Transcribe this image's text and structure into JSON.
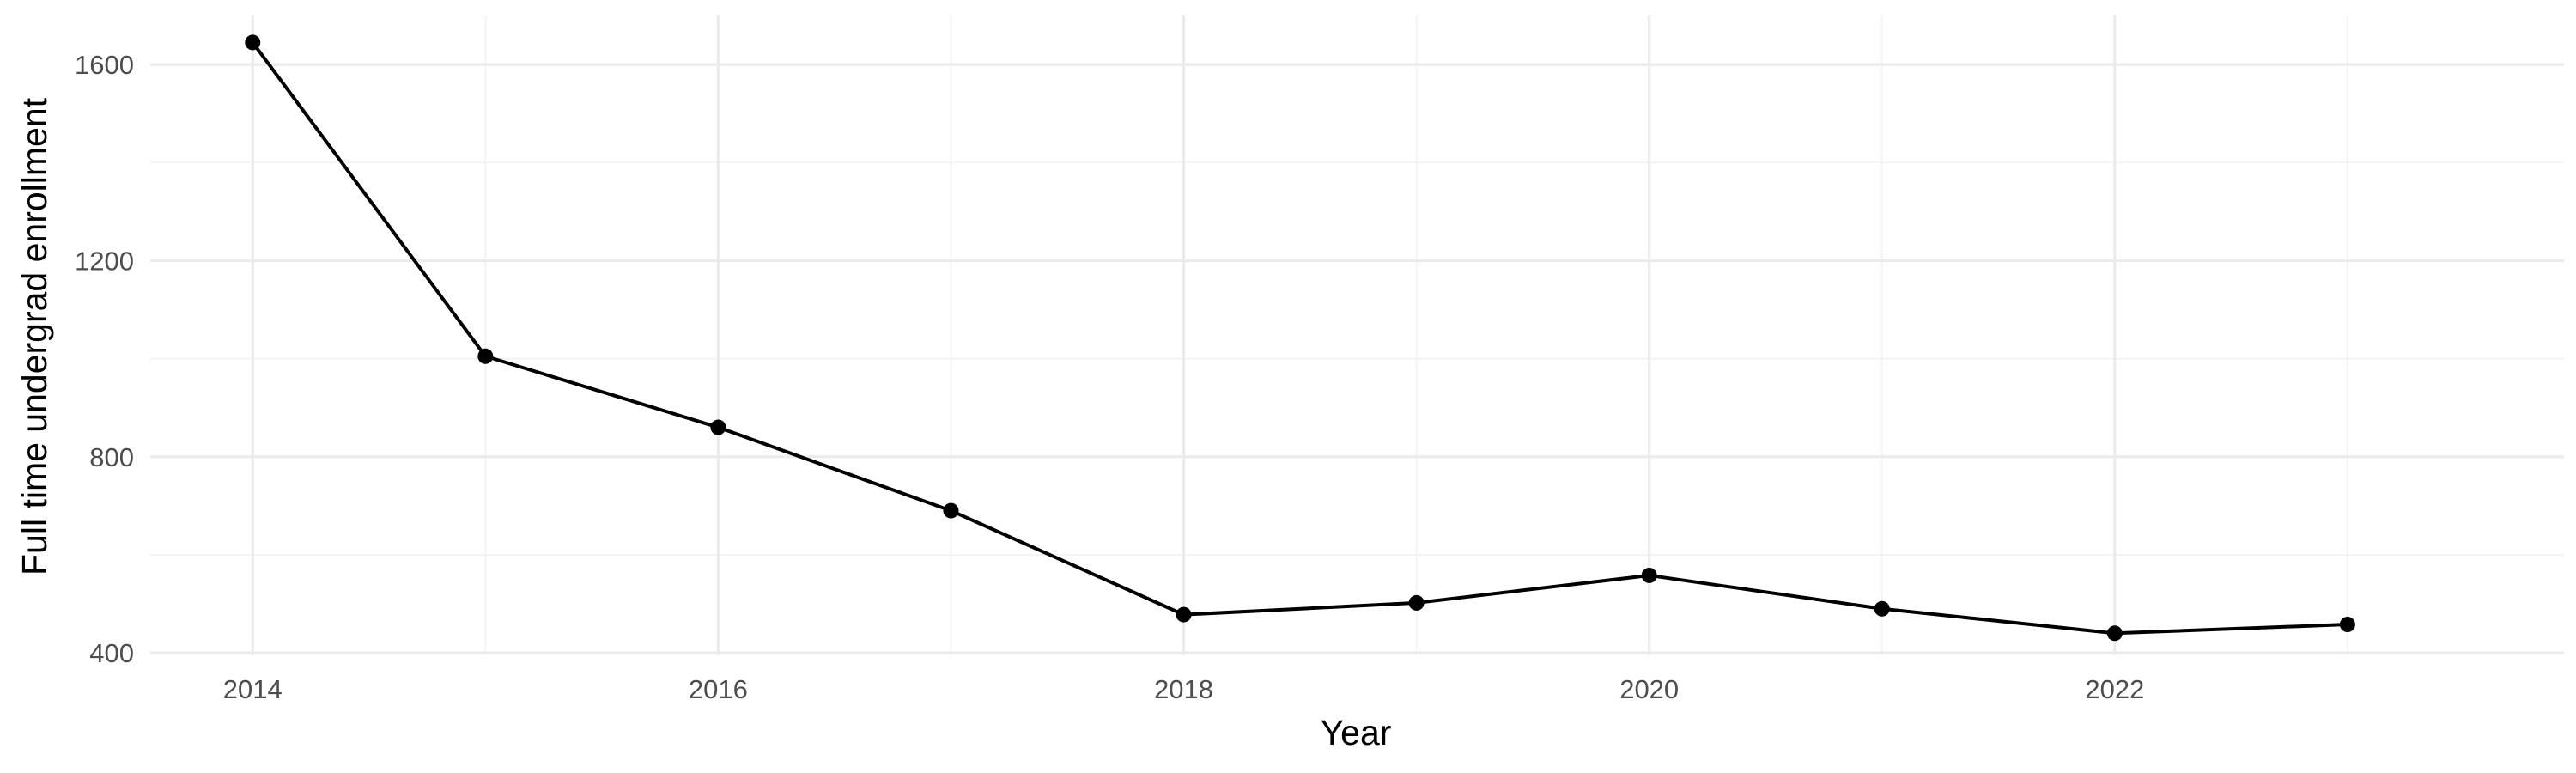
{
  "chart_data": {
    "type": "line",
    "title": "",
    "xlabel": "Year",
    "ylabel": "Full time undergrad enrollment",
    "x": [
      2014,
      2015,
      2016,
      2017,
      2018,
      2019,
      2020,
      2021,
      2022,
      2023
    ],
    "series": [
      {
        "values": [
          1645,
          1005,
          860,
          690,
          478,
          502,
          558,
          490,
          440,
          458
        ]
      }
    ],
    "xlim": [
      2013.56,
      2023.93
    ],
    "ylim": [
      395,
      1700
    ],
    "x_ticks": [
      2014,
      2016,
      2018,
      2020,
      2022
    ],
    "x_tick_labels": [
      "2014",
      "2016",
      "2018",
      "2020",
      "2022"
    ],
    "y_ticks": [
      400,
      800,
      1200,
      1600
    ],
    "y_tick_labels": [
      "400",
      "800",
      "1200",
      "1600"
    ],
    "grid": true,
    "line_color": "#000000",
    "grid_color": "#ebebeb",
    "legend": "none"
  }
}
